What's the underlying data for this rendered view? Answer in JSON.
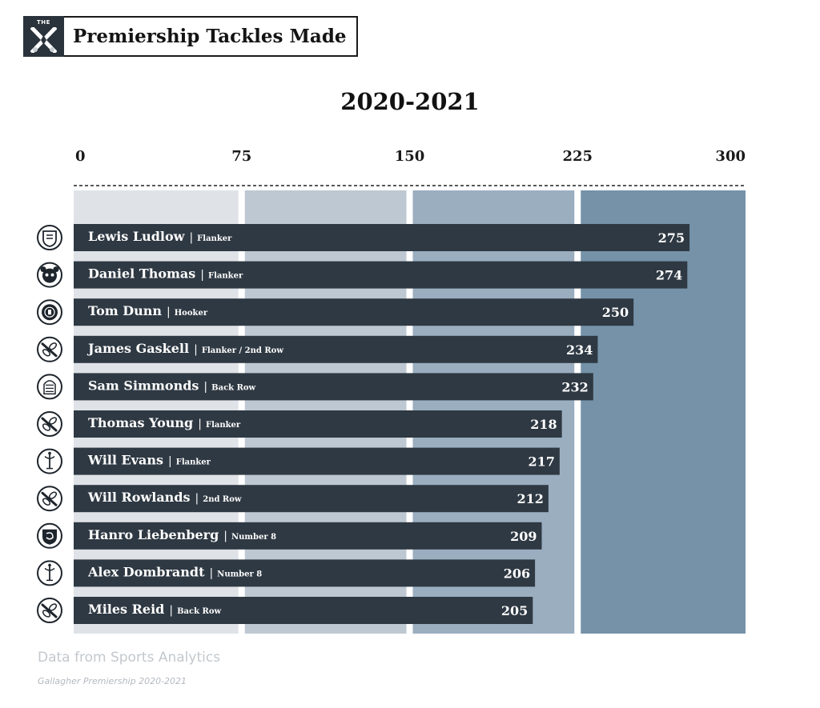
{
  "header": {
    "logo_text": "THE",
    "title": "Premiership Tackles Made"
  },
  "chart_data": {
    "type": "bar",
    "orientation": "horizontal",
    "title": "2020-2021",
    "xlim": [
      0,
      300
    ],
    "ticks": [
      0,
      75,
      150,
      225,
      300
    ],
    "tick_labels": [
      "0",
      "75",
      "150",
      "225",
      "300"
    ],
    "band_colors": [
      "#dfe3e8",
      "#bec8d2",
      "#9aaebf",
      "#7592a8"
    ],
    "bar_color": "#2f3943",
    "bars": [
      {
        "player": "Lewis Ludlow",
        "position": "Flanker",
        "value": 275,
        "club_icon": "gloucester-crest-icon"
      },
      {
        "player": "Daniel Thomas",
        "position": "Flanker",
        "value": 274,
        "club_icon": "bristol-bear-icon"
      },
      {
        "player": "Tom Dunn",
        "position": "Hooker",
        "value": 250,
        "club_icon": "bath-crest-icon"
      },
      {
        "player": "James Gaskell",
        "position": "Flanker / 2nd Row",
        "value": 234,
        "club_icon": "wasps-icon"
      },
      {
        "player": "Sam Simmonds",
        "position": "Back Row",
        "value": 232,
        "club_icon": "exeter-chief-icon"
      },
      {
        "player": "Thomas Young",
        "position": "Flanker",
        "value": 218,
        "club_icon": "wasps-icon"
      },
      {
        "player": "Will Evans",
        "position": "Flanker",
        "value": 217,
        "club_icon": "harlequins-jester-icon"
      },
      {
        "player": "Will Rowlands",
        "position": "2nd Row",
        "value": 212,
        "club_icon": "wasps-icon"
      },
      {
        "player": "Hanro Liebenberg",
        "position": "Number 8",
        "value": 209,
        "club_icon": "leicester-crest-icon"
      },
      {
        "player": "Alex Dombrandt",
        "position": "Number 8",
        "value": 206,
        "club_icon": "harlequins-jester-icon"
      },
      {
        "player": "Miles Reid",
        "position": "Back Row",
        "value": 205,
        "club_icon": "wasps-icon"
      }
    ]
  },
  "footer": {
    "source": "Data from Sports Analytics",
    "subtitle": "Gallagher Premiership 2020-2021"
  }
}
